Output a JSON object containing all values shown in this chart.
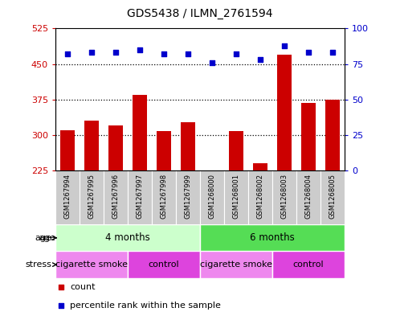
{
  "title": "GDS5438 / ILMN_2761594",
  "samples": [
    "GSM1267994",
    "GSM1267995",
    "GSM1267996",
    "GSM1267997",
    "GSM1267998",
    "GSM1267999",
    "GSM1268000",
    "GSM1268001",
    "GSM1268002",
    "GSM1268003",
    "GSM1268004",
    "GSM1268005"
  ],
  "counts": [
    310,
    330,
    320,
    385,
    308,
    328,
    223,
    308,
    240,
    470,
    368,
    375
  ],
  "percentiles": [
    82,
    83,
    83,
    85,
    82,
    82,
    76,
    82,
    78,
    88,
    83,
    83
  ],
  "ylim_left": [
    225,
    525
  ],
  "ylim_right": [
    0,
    100
  ],
  "yticks_left": [
    225,
    300,
    375,
    450,
    525
  ],
  "yticks_right": [
    0,
    25,
    50,
    75,
    100
  ],
  "hlines": [
    300,
    375,
    450
  ],
  "bar_color": "#cc0000",
  "dot_color": "#0000cc",
  "age_groups": [
    {
      "label": "4 months",
      "start": 0,
      "end": 6,
      "color": "#ccffcc"
    },
    {
      "label": "6 months",
      "start": 6,
      "end": 12,
      "color": "#55dd55"
    }
  ],
  "stress_groups": [
    {
      "label": "cigarette smoke",
      "start": 0,
      "end": 3,
      "color": "#ee88ee"
    },
    {
      "label": "control",
      "start": 3,
      "end": 6,
      "color": "#dd44dd"
    },
    {
      "label": "cigarette smoke",
      "start": 6,
      "end": 9,
      "color": "#ee88ee"
    },
    {
      "label": "control",
      "start": 9,
      "end": 12,
      "color": "#dd44dd"
    }
  ],
  "background_color": "#ffffff",
  "tick_label_color_left": "#cc0000",
  "tick_label_color_right": "#0000cc",
  "legend_count_color": "#cc0000",
  "legend_pct_color": "#0000cc",
  "cell_bg_color": "#cccccc",
  "cell_border_color": "#aaaaaa"
}
